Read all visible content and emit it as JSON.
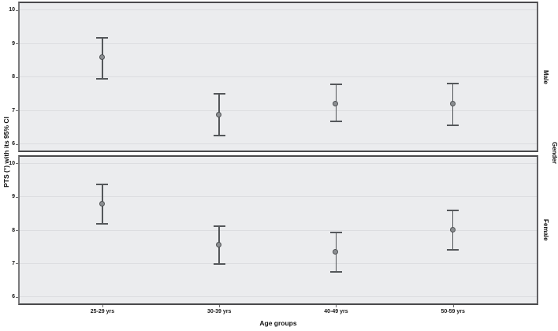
{
  "chart_data": {
    "type": "errorbar",
    "title": "",
    "xlabel": "Age groups",
    "ylabel": "PTS (°) with its 95% CI",
    "facet_dimension": "Gender",
    "categories": [
      "25-29 yrs",
      "30-39 yrs",
      "40-49 yrs",
      "50-59 yrs"
    ],
    "ylim": [
      5.8,
      10.2
    ],
    "yticks": [
      10,
      9,
      8,
      7,
      6
    ],
    "grid": "horizontal",
    "legend": "none",
    "panels": [
      {
        "name": "Male",
        "series": [
          {
            "category": "25-29 yrs",
            "mean": 8.57,
            "ci_low": 7.95,
            "ci_high": 9.17
          },
          {
            "category": "30-39 yrs",
            "mean": 6.87,
            "ci_low": 6.24,
            "ci_high": 7.5
          },
          {
            "category": "40-49 yrs",
            "mean": 7.2,
            "ci_low": 6.67,
            "ci_high": 7.77
          },
          {
            "category": "50-59 yrs",
            "mean": 7.18,
            "ci_low": 6.55,
            "ci_high": 7.81
          }
        ]
      },
      {
        "name": "Female",
        "series": [
          {
            "category": "25-29 yrs",
            "mean": 8.78,
            "ci_low": 8.2,
            "ci_high": 9.38
          },
          {
            "category": "30-39 yrs",
            "mean": 7.54,
            "ci_low": 6.99,
            "ci_high": 8.11
          },
          {
            "category": "40-49 yrs",
            "mean": 7.33,
            "ci_low": 6.75,
            "ci_high": 7.93
          },
          {
            "category": "50-59 yrs",
            "mean": 8.0,
            "ci_low": 7.4,
            "ci_high": 8.6
          }
        ]
      }
    ],
    "colors": {
      "marker": "#8b8e91",
      "error_bar": "#54575a",
      "panel_background": "#ebecee",
      "gridline": "#dcdde0",
      "border": "#4a4a4c",
      "text": "#111111"
    }
  }
}
